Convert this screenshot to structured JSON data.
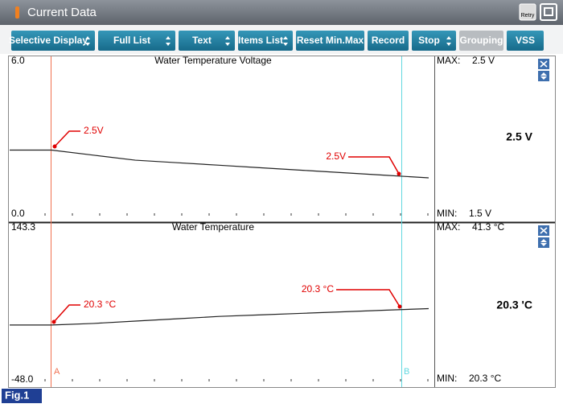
{
  "window": {
    "title": "Current Data",
    "retry": "Retry"
  },
  "toolbar": {
    "buttons": [
      "Selective Display",
      "Full List",
      "Text",
      "Items List",
      "Reset Min.Max",
      "Record",
      "Stop",
      "Grouping",
      "VSS"
    ]
  },
  "panels": [
    {
      "title": "Water Temperature Voltage",
      "scale_top": {
        "value": 6,
        "label": "6.0"
      },
      "scale_bottom": {
        "value": 0,
        "label": "0.0"
      },
      "max_label": "MAX:",
      "max_value": "2.5 V",
      "min_label": "MIN:",
      "min_value": "1.5 V",
      "current_value": "2.5 V",
      "annotations": [
        "2.5V",
        "2.5V"
      ],
      "trace": [
        2.6,
        2.6,
        2.4,
        2.2,
        2.1,
        2.0,
        1.9,
        1.8,
        1.7,
        1.6,
        1.5
      ]
    },
    {
      "title": "Water Temperature",
      "scale_top": {
        "value": 143.3,
        "label": "143.3"
      },
      "scale_bottom": {
        "value": -48.0,
        "label": "-48.0"
      },
      "max_label": "MAX:",
      "max_value": "41.3 °C",
      "min_label": "MIN:",
      "min_value": "20.3 °C",
      "current_value": "20.3 'C",
      "annotations": [
        "20.3 °C",
        "20.3 °C"
      ],
      "trace": [
        20,
        20,
        22,
        25,
        28,
        31,
        33,
        35,
        37,
        39,
        41
      ]
    }
  ],
  "cursors": [
    "A",
    "B"
  ],
  "figure_label": "Fig.1"
}
